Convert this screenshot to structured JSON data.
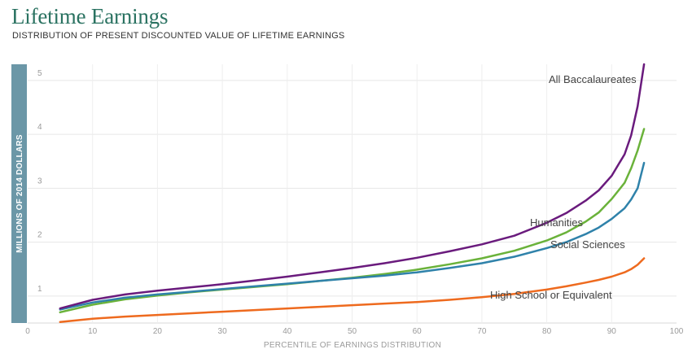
{
  "header": {
    "title": "Lifetime Earnings",
    "subtitle": "DISTRIBUTION OF PRESENT DISCOUNTED VALUE OF LIFETIME EARNINGS"
  },
  "chart_data": {
    "type": "line",
    "xlabel": "PERCENTILE OF EARNINGS DISTRIBUTION",
    "ylabel": "MILLIONS OF 2014 DOLLARS",
    "xlim": [
      0,
      100
    ],
    "ylim": [
      0.5,
      5.3
    ],
    "xticks": [
      0,
      10,
      20,
      30,
      40,
      50,
      60,
      70,
      80,
      90,
      100
    ],
    "yticks": [
      1,
      2,
      3,
      4,
      5
    ],
    "grid": true,
    "legend": "none (series labeled inline)",
    "x": [
      5,
      10,
      15,
      20,
      25,
      30,
      35,
      40,
      45,
      50,
      55,
      60,
      65,
      70,
      75,
      80,
      83,
      86,
      88,
      90,
      92,
      93,
      94,
      95
    ],
    "series": [
      {
        "name": "All Baccalaureates",
        "color": "#6a1b7d",
        "values": [
          0.77,
          0.93,
          1.03,
          1.1,
          1.16,
          1.22,
          1.29,
          1.36,
          1.44,
          1.52,
          1.61,
          1.71,
          1.83,
          1.96,
          2.12,
          2.36,
          2.54,
          2.77,
          2.96,
          3.23,
          3.63,
          3.98,
          4.52,
          5.3
        ]
      },
      {
        "name": "Humanities",
        "color": "#6ab23a",
        "values": [
          0.7,
          0.84,
          0.94,
          1.01,
          1.07,
          1.12,
          1.17,
          1.22,
          1.28,
          1.34,
          1.41,
          1.49,
          1.59,
          1.7,
          1.84,
          2.03,
          2.18,
          2.38,
          2.55,
          2.8,
          3.1,
          3.37,
          3.7,
          4.1
        ]
      },
      {
        "name": "Social Sciences",
        "color": "#2f82aa",
        "values": [
          0.75,
          0.88,
          0.97,
          1.03,
          1.08,
          1.13,
          1.18,
          1.23,
          1.28,
          1.33,
          1.38,
          1.44,
          1.52,
          1.61,
          1.73,
          1.89,
          2.0,
          2.15,
          2.27,
          2.43,
          2.63,
          2.79,
          3.0,
          3.47
        ]
      },
      {
        "name": "High School or Equivalent",
        "color": "#ee6a1e",
        "values": [
          0.52,
          0.58,
          0.62,
          0.65,
          0.68,
          0.71,
          0.74,
          0.77,
          0.8,
          0.83,
          0.86,
          0.89,
          0.93,
          0.98,
          1.04,
          1.12,
          1.18,
          1.25,
          1.3,
          1.36,
          1.44,
          1.5,
          1.58,
          1.7
        ]
      }
    ]
  }
}
